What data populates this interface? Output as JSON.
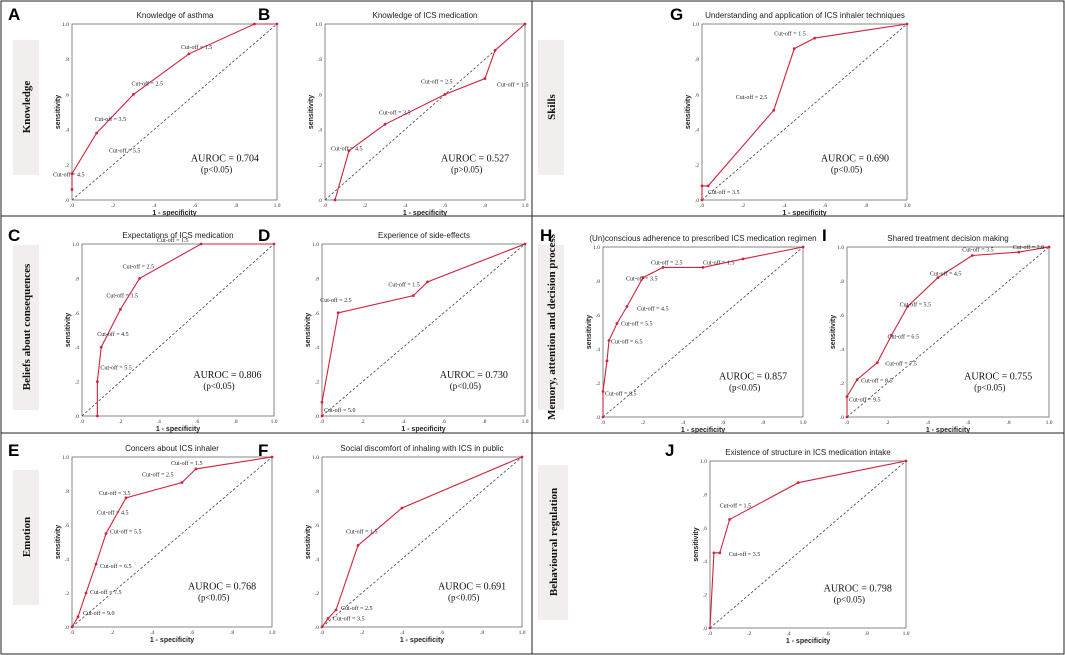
{
  "colors": {
    "curve": "#d0233c",
    "diagonal": "#444444",
    "side_box": "#f3eeee",
    "border": "#222222"
  },
  "domains": [
    "Knowledge",
    "Skills",
    "Beliefs about consequences",
    "Memory, attention and decision process",
    "Emotion",
    "Behavioural regulation"
  ],
  "common": {
    "xlabel": "1 - specificity",
    "ylabel": "sensitivity"
  },
  "chart_data": [
    {
      "letter": "A",
      "type": "line",
      "title": "Knowledge of asthma",
      "xlim": [
        0,
        1
      ],
      "ylim": [
        0,
        1
      ],
      "x": [
        0,
        0,
        0.12,
        0.3,
        0.57,
        0.89,
        1
      ],
      "y": [
        0.06,
        0.15,
        0.38,
        0.6,
        0.83,
        1,
        1
      ],
      "xticks": [
        ".0",
        ".2",
        ".4",
        ".6",
        ".8",
        "1.0"
      ],
      "yticks": [
        ".0",
        ".2",
        ".4",
        ".6",
        ".8",
        "1.0"
      ],
      "labels": [
        "Cut-off = 4.5",
        "Cut-off = 3.5",
        "Cut-off = 2.5",
        "Cut-off = 1.5",
        "Cut-off = 5.5"
      ],
      "auroc": "AUROC = 0.704",
      "p": "(p<0.05)"
    },
    {
      "letter": "B",
      "type": "line",
      "title": "Knowledge of ICS medication",
      "xlim": [
        0,
        1
      ],
      "ylim": [
        0,
        1
      ],
      "x": [
        0.05,
        0.12,
        0.3,
        0.6,
        0.8,
        0.85,
        1
      ],
      "y": [
        0,
        0.28,
        0.43,
        0.6,
        0.69,
        0.85,
        1
      ],
      "xticks": [
        ".0",
        ".2",
        ".4",
        ".6",
        ".8",
        "1.0"
      ],
      "yticks": [
        ".0",
        ".2",
        ".4",
        ".6",
        ".8",
        "1.0"
      ],
      "labels": [
        "Cut-off = 4.5",
        "Cut-off = 3.5",
        "Cut-off = 2.5",
        "Cut-off = 1.5"
      ],
      "auroc": "AUROC = 0.527",
      "p": "(p>0.05)"
    },
    {
      "letter": "G",
      "type": "line",
      "title": "Understanding and application of ICS inhaler techniques",
      "xlim": [
        0,
        1
      ],
      "ylim": [
        0,
        1
      ],
      "x": [
        0,
        0,
        0.03,
        0.35,
        0.45,
        0.55,
        1
      ],
      "y": [
        0,
        0.08,
        0.08,
        0.51,
        0.86,
        0.92,
        1
      ],
      "xticks": [
        ".0",
        ".2",
        ".4",
        ".6",
        ".8",
        "1.0"
      ],
      "yticks": [
        ".0",
        ".2",
        ".4",
        ".6",
        ".8",
        "1.0"
      ],
      "labels": [
        "Cut-off = 3.5",
        "Cut-off = 2.5",
        "Cut-off = 1.5"
      ],
      "auroc": "AUROC = 0.690",
      "p": "(p<0.05)"
    },
    {
      "letter": "C",
      "type": "line",
      "title": "Expectations of ICS medication",
      "xlim": [
        0,
        1
      ],
      "ylim": [
        0,
        1
      ],
      "x": [
        0.08,
        0.08,
        0.1,
        0.2,
        0.3,
        0.62,
        1
      ],
      "y": [
        0,
        0.2,
        0.4,
        0.62,
        0.8,
        1,
        1
      ],
      "xticks": [
        ".0",
        ".2",
        ".4",
        ".6",
        ".8",
        "1.0"
      ],
      "yticks": [
        ".0",
        ".2",
        ".4",
        ".6",
        ".8",
        "1.0"
      ],
      "labels": [
        "Cut-off = 5.5",
        "Cut-off = 4.5",
        "Cut-off = 3.5",
        "Cut-off = 2.5",
        "Cut-off = 1.5"
      ],
      "auroc": "AUROC = 0.806",
      "p": "(p<0.05)"
    },
    {
      "letter": "D",
      "type": "line",
      "title": "Experience of side-effects",
      "xlim": [
        0,
        1
      ],
      "ylim": [
        0,
        1
      ],
      "x": [
        0,
        0,
        0.08,
        0.45,
        0.52,
        1
      ],
      "y": [
        0,
        0.08,
        0.6,
        0.7,
        0.78,
        1
      ],
      "xticks": [
        ".0",
        ".2",
        ".4",
        ".6",
        ".8",
        "1.0"
      ],
      "yticks": [
        ".0",
        ".2",
        ".4",
        ".6",
        ".8",
        "1.0"
      ],
      "labels": [
        "Cut-off = 5.0",
        "Cut-off = 2.5",
        "Cut-off = 1.5"
      ],
      "auroc": "AUROC = 0.730",
      "p": "(p<0.05)"
    },
    {
      "letter": "H",
      "type": "line",
      "title": "(Un)conscious adherence to prescribed ICS medication regimen",
      "xlim": [
        0,
        1
      ],
      "ylim": [
        0,
        1
      ],
      "x": [
        0,
        0,
        0.02,
        0.03,
        0.07,
        0.12,
        0.2,
        0.3,
        0.5,
        0.7,
        1
      ],
      "y": [
        0,
        0.15,
        0.33,
        0.45,
        0.55,
        0.65,
        0.82,
        0.88,
        0.88,
        0.93,
        1
      ],
      "xticks": [
        ".0",
        ".2",
        ".4",
        ".6",
        ".8",
        "1.0"
      ],
      "yticks": [
        ".0",
        ".2",
        ".4",
        ".6",
        ".8",
        "1.0"
      ],
      "labels": [
        "Cut-off = 8.5",
        "Cut-off = 6.5",
        "Cut-off = 5.5",
        "Cut-off = 4.5",
        "Cut-off = 3.5",
        "Cut-off = 2.5",
        "Cut-off = 1.5"
      ],
      "auroc": "AUROC = 0.857",
      "p": "(p<0.05)"
    },
    {
      "letter": "I",
      "type": "line",
      "title": "Shared treatment decision making",
      "xlim": [
        0,
        1
      ],
      "ylim": [
        0,
        1
      ],
      "x": [
        0,
        0,
        0.05,
        0.15,
        0.22,
        0.3,
        0.45,
        0.62,
        0.85,
        1
      ],
      "y": [
        0,
        0.12,
        0.22,
        0.32,
        0.48,
        0.65,
        0.82,
        0.95,
        0.97,
        1
      ],
      "xticks": [
        ".0",
        ".2",
        ".4",
        ".6",
        ".8",
        "1.0"
      ],
      "yticks": [
        ".0",
        ".2",
        ".4",
        ".6",
        ".8",
        "1.0"
      ],
      "labels": [
        "Cut-off = 9.5",
        "Cut-off = 8.5",
        "Cut-off = 7.5",
        "Cut-off = 6.5",
        "Cut-off = 5.5",
        "Cut-off = 4.5",
        "Cut-off = 3.5",
        "Cut-off = 2.0"
      ],
      "auroc": "AUROC = 0.755",
      "p": "(p<0.05)"
    },
    {
      "letter": "E",
      "type": "line",
      "title": "Concers about ICS inhaler",
      "xlim": [
        0,
        1
      ],
      "ylim": [
        0,
        1
      ],
      "x": [
        0,
        0.03,
        0.07,
        0.12,
        0.17,
        0.27,
        0.55,
        0.62,
        1
      ],
      "y": [
        0,
        0.06,
        0.2,
        0.37,
        0.55,
        0.76,
        0.85,
        0.93,
        1
      ],
      "xticks": [
        ".0",
        ".2",
        ".4",
        ".6",
        ".8",
        "1.0"
      ],
      "yticks": [
        ".0",
        ".2",
        ".4",
        ".6",
        ".8",
        "1.0"
      ],
      "labels": [
        "Cut-off = 9.0",
        "Cut-off = 7.5",
        "Cut-off = 6.5",
        "Cut-off = 5.5",
        "Cut-off = 4.5",
        "Cut-off = 3.5",
        "Cut-off = 2.5",
        "Cut-off = 1.5"
      ],
      "auroc": "AUROC = 0.768",
      "p": "(p<0.05)"
    },
    {
      "letter": "F",
      "type": "line",
      "title": "Social discomfort of inhaling with ICS in public",
      "xlim": [
        0,
        1
      ],
      "ylim": [
        0,
        1
      ],
      "x": [
        0,
        0.03,
        0.07,
        0.18,
        0.4,
        1
      ],
      "y": [
        0,
        0.05,
        0.1,
        0.48,
        0.7,
        1
      ],
      "xticks": [
        ".0",
        ".2",
        ".4",
        ".6",
        ".8",
        "1.0"
      ],
      "yticks": [
        ".0",
        ".2",
        ".4",
        ".6",
        ".8",
        "1.0"
      ],
      "labels": [
        "Cut-off = 3.5",
        "Cut-off = 2.5",
        "Cut-off = 1.5"
      ],
      "auroc": "AUROC = 0.691",
      "p": "(p<0.05)"
    },
    {
      "letter": "J",
      "type": "line",
      "title": "Existence of structure in ICS medication intake",
      "xlim": [
        0,
        1
      ],
      "ylim": [
        0,
        1
      ],
      "x": [
        0,
        0.02,
        0.05,
        0.1,
        0.45,
        1
      ],
      "y": [
        0,
        0.45,
        0.45,
        0.65,
        0.87,
        1
      ],
      "xticks": [
        ".0",
        ".2",
        ".4",
        ".6",
        ".8",
        "1.0"
      ],
      "yticks": [
        ".0",
        ".2",
        ".4",
        ".6",
        ".8",
        "1.0"
      ],
      "labels": [
        "Cut-off = 3.5",
        "Cut-off = 1.5"
      ],
      "auroc": "AUROC = 0.798",
      "p": "(p<0.05)"
    }
  ]
}
